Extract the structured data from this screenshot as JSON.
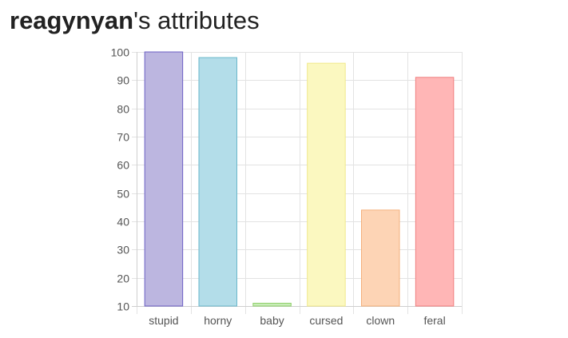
{
  "page": {
    "username": "reagynyan",
    "title_suffix": "'s attributes"
  },
  "chart_data": {
    "type": "bar",
    "categories": [
      "stupid",
      "horny",
      "baby",
      "cursed",
      "clown",
      "feral"
    ],
    "values": [
      100,
      98,
      11,
      96,
      44,
      91
    ],
    "ylim": [
      10,
      100
    ],
    "yticks": [
      10,
      20,
      30,
      40,
      50,
      60,
      70,
      80,
      90,
      100
    ],
    "grid": true,
    "legend": "none",
    "colors": [
      {
        "fill": "#bcb6e0",
        "stroke": "#6b5fc4"
      },
      {
        "fill": "#b3dde9",
        "stroke": "#6bb8cc"
      },
      {
        "fill": "#c8ecb8",
        "stroke": "#8fcf6a"
      },
      {
        "fill": "#fbf8c0",
        "stroke": "#f0e98a"
      },
      {
        "fill": "#fdd4b5",
        "stroke": "#f4b07c"
      },
      {
        "fill": "#ffb6b6",
        "stroke": "#f07f7f"
      }
    ]
  }
}
